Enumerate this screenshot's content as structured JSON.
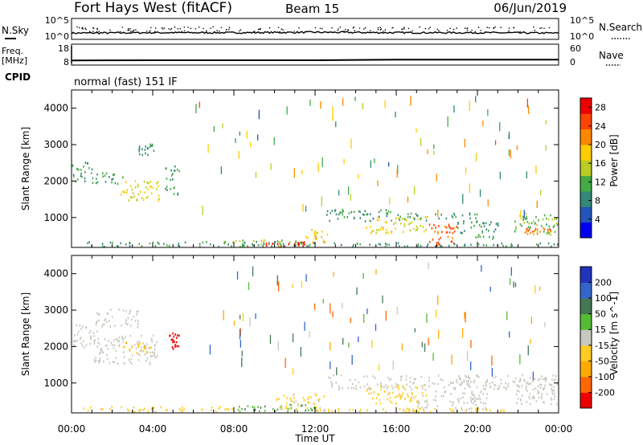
{
  "header": {
    "station": "Fort Hays West (fitACF)",
    "beam": "Beam 15",
    "date": "06/Jun/2019"
  },
  "noise_panel": {
    "left_label": "N.Sky",
    "right_label": "N.Search",
    "left_ticks": [
      "10^5",
      "10^0"
    ],
    "right_ticks": [
      "10^5",
      "10^0"
    ]
  },
  "freq_panel": {
    "left_label_line1": "Freq.",
    "left_label_line2": "[MHz]",
    "right_label": "Nave",
    "left_ticks": [
      "18",
      "8"
    ],
    "right_ticks": [
      "60",
      "0"
    ],
    "cpid_label": "CPID",
    "cpid_value": "normal (fast) 151 IF"
  },
  "colors": {
    "power_scale": [
      "#0000ee",
      "#2255bb",
      "#338877",
      "#44aa44",
      "#bbcc22",
      "#ffcc00",
      "#ff8800",
      "#ff4400",
      "#ee0000"
    ],
    "velocity_scale": [
      "#2233bb",
      "#3366cc",
      "#447755",
      "#55bb33",
      "#c8c8c0",
      "#ffcc22",
      "#ffaa00",
      "#ff6600",
      "#ee0000"
    ]
  },
  "chart_data": [
    {
      "type": "line",
      "name": "noise",
      "x": [
        "00:00",
        "04:00",
        "08:00",
        "12:00",
        "16:00",
        "20:00",
        "00:00"
      ],
      "series": [
        {
          "name": "N.Sky",
          "level": "~10^1.5",
          "values": [
            1.5,
            1.6,
            1.6,
            1.7,
            1.6,
            1.6,
            1.5
          ]
        }
      ],
      "ylim": [
        0,
        5
      ],
      "scale": "log"
    },
    {
      "type": "line",
      "name": "frequency",
      "x": [
        "00:00",
        "04:00",
        "08:00",
        "12:00",
        "16:00",
        "20:00",
        "00:00"
      ],
      "series": [
        {
          "name": "Freq.",
          "values": [
            10.2,
            10.3,
            10.3,
            10.3,
            10.6,
            10.6,
            10.6
          ]
        }
      ],
      "ylim": [
        8,
        18
      ]
    },
    {
      "type": "heatmap",
      "name": "power",
      "xlabel": "",
      "ylabel": "Slant Range [km]",
      "x_ticks": [
        "00:00",
        "04:00",
        "08:00",
        "12:00",
        "16:00",
        "20:00",
        "00:00"
      ],
      "y_ticks": [
        1000,
        2000,
        3000,
        4000
      ],
      "xlim_hours": [
        0,
        24
      ],
      "ylim": [
        180,
        4500
      ],
      "colorbar_label": "Power [dB]",
      "colorbar_ticks": [
        4,
        8,
        12,
        16,
        20,
        24,
        28
      ],
      "colorbar_range": [
        0,
        30
      ],
      "regions": [
        {
          "t0": 0.0,
          "t1": 1.0,
          "r0": 1950,
          "r1": 2500,
          "level": 10
        },
        {
          "t0": 1.0,
          "t1": 2.5,
          "r0": 1900,
          "r1": 2200,
          "level": 11
        },
        {
          "t0": 2.4,
          "t1": 4.4,
          "r0": 1450,
          "r1": 2000,
          "level": 17
        },
        {
          "t0": 3.3,
          "t1": 4.1,
          "r0": 2700,
          "r1": 3000,
          "level": 9
        },
        {
          "t0": 4.6,
          "t1": 5.3,
          "r0": 1600,
          "r1": 2400,
          "level": 11
        },
        {
          "t0": 7.5,
          "t1": 11.8,
          "r0": 180,
          "r1": 360,
          "level": 14
        },
        {
          "t0": 9.5,
          "t1": 11.5,
          "r0": 180,
          "r1": 330,
          "level": 27
        },
        {
          "t0": 11.5,
          "t1": 12.6,
          "r0": 250,
          "r1": 650,
          "level": 18
        },
        {
          "t0": 12.5,
          "t1": 15.8,
          "r0": 880,
          "r1": 1200,
          "level": 9
        },
        {
          "t0": 14.5,
          "t1": 17.5,
          "r0": 550,
          "r1": 1000,
          "level": 17
        },
        {
          "t0": 16.0,
          "t1": 20.0,
          "r0": 900,
          "r1": 1100,
          "level": 10
        },
        {
          "t0": 17.5,
          "t1": 19.0,
          "r0": 180,
          "r1": 800,
          "level": 24
        },
        {
          "t0": 19.0,
          "t1": 21.0,
          "r0": 400,
          "r1": 900,
          "level": 10
        },
        {
          "t0": 21.8,
          "t1": 24.0,
          "r0": 500,
          "r1": 1100,
          "level": 12
        },
        {
          "t0": 22.3,
          "t1": 23.6,
          "r0": 500,
          "r1": 700,
          "level": 24
        },
        {
          "t0": 0.5,
          "t1": 12.0,
          "r0": 180,
          "r1": 320,
          "level": 10
        },
        {
          "t0": 12.0,
          "t1": 24.0,
          "r0": 180,
          "r1": 280,
          "level": 9
        }
      ]
    },
    {
      "type": "heatmap",
      "name": "velocity",
      "xlabel": "Time UT",
      "ylabel": "Slant Range [km]",
      "x_ticks": [
        "00:00",
        "04:00",
        "08:00",
        "12:00",
        "16:00",
        "20:00",
        "00:00"
      ],
      "y_ticks": [
        1000,
        2000,
        3000,
        4000
      ],
      "xlim_hours": [
        0,
        24
      ],
      "ylim": [
        180,
        4500
      ],
      "colorbar_label": "Velocity [m s^-1]",
      "colorbar_ticks": [
        200,
        100,
        50,
        15,
        -15,
        -50,
        -100,
        -200
      ],
      "regions": [
        {
          "t0": 0.0,
          "t1": 1.3,
          "r0": 1950,
          "r1": 2600,
          "level": 0
        },
        {
          "t0": 1.0,
          "t1": 4.2,
          "r0": 1500,
          "r1": 2300,
          "level": 0
        },
        {
          "t0": 2.5,
          "t1": 4.0,
          "r0": 1800,
          "r1": 2100,
          "level": -40
        },
        {
          "t0": 1.2,
          "t1": 3.3,
          "r0": 2500,
          "r1": 3000,
          "level": 0
        },
        {
          "t0": 4.8,
          "t1": 5.3,
          "r0": 1900,
          "r1": 2350,
          "level": -220
        },
        {
          "t0": 0.5,
          "t1": 8.0,
          "r0": 180,
          "r1": 330,
          "level": -30
        },
        {
          "t0": 8.0,
          "t1": 12.0,
          "r0": 180,
          "r1": 400,
          "level": 40
        },
        {
          "t0": 10.0,
          "t1": 12.5,
          "r0": 200,
          "r1": 700,
          "level": -20
        },
        {
          "t0": 12.6,
          "t1": 24.0,
          "r0": 800,
          "r1": 1200,
          "level": 0
        },
        {
          "t0": 14.5,
          "t1": 17.5,
          "r0": 400,
          "r1": 900,
          "level": -30
        },
        {
          "t0": 17.0,
          "t1": 20.5,
          "r0": 250,
          "r1": 750,
          "level": 0
        },
        {
          "t0": 12.0,
          "t1": 22.0,
          "r0": 180,
          "r1": 300,
          "level": -30
        },
        {
          "t0": 21.8,
          "t1": 24.0,
          "r0": 400,
          "r1": 1100,
          "level": 0
        }
      ]
    }
  ]
}
